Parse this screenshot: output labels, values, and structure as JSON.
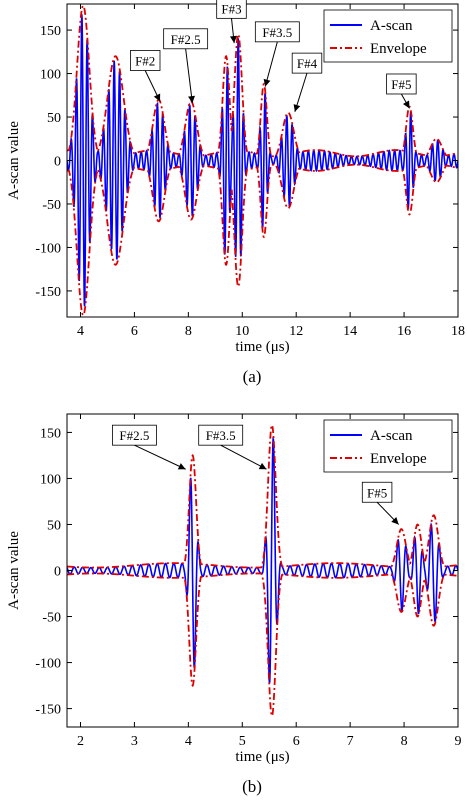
{
  "chart_data": [
    {
      "type": "line",
      "caption": "(a)",
      "xlabel": "time (μs)",
      "ylabel": "A-scan value",
      "xlim": [
        3.5,
        18
      ],
      "ylim": [
        -180,
        180
      ],
      "xticks": [
        4,
        6,
        8,
        10,
        12,
        14,
        16,
        18
      ],
      "yticks": [
        -150,
        -100,
        -50,
        0,
        50,
        100,
        150
      ],
      "legend_position": "top-right",
      "grid": false,
      "series": [
        {
          "name": "A-scan",
          "color": "#0000ff",
          "style": "solid"
        },
        {
          "name": "Envelope",
          "color": "#dd0000",
          "style": "dash-dot"
        }
      ],
      "carrier_frequency_mhz": 5,
      "echoes": [
        {
          "t": 4.1,
          "amp": 178,
          "width": 0.32
        },
        {
          "t": 5.3,
          "amp": 120,
          "width": 0.42
        },
        {
          "t": 6.9,
          "amp": 70,
          "width": 0.3
        },
        {
          "t": 8.1,
          "amp": 68,
          "width": 0.3
        },
        {
          "t": 9.4,
          "amp": 120,
          "width": 0.18
        },
        {
          "t": 9.85,
          "amp": 145,
          "width": 0.2
        },
        {
          "t": 10.8,
          "amp": 88,
          "width": 0.16
        },
        {
          "t": 11.7,
          "amp": 55,
          "width": 0.3
        },
        {
          "t": 16.2,
          "amp": 62,
          "width": 0.18
        },
        {
          "t": 17.2,
          "amp": 25,
          "width": 0.3
        }
      ],
      "noise_floor": 12,
      "annotations": [
        {
          "label": "F#2",
          "box_t": 6.4,
          "box_v": 115,
          "tip_t": 6.95,
          "tip_v": 68
        },
        {
          "label": "F#2.5",
          "box_t": 7.9,
          "box_v": 140,
          "tip_t": 8.15,
          "tip_v": 66
        },
        {
          "label": "F#3",
          "box_t": 9.6,
          "box_v": 175,
          "tip_t": 9.7,
          "tip_v": 135
        },
        {
          "label": "F#3.5",
          "box_t": 11.3,
          "box_v": 148,
          "tip_t": 10.85,
          "tip_v": 85
        },
        {
          "label": "F#4",
          "box_t": 12.4,
          "box_v": 112,
          "tip_t": 11.95,
          "tip_v": 56
        },
        {
          "label": "F#5",
          "box_t": 15.9,
          "box_v": 88,
          "tip_t": 16.2,
          "tip_v": 60
        }
      ]
    },
    {
      "type": "line",
      "caption": "(b)",
      "xlabel": "time (μs)",
      "ylabel": "A-scan value",
      "xlim": [
        1.75,
        9
      ],
      "ylim": [
        -170,
        170
      ],
      "xticks": [
        2,
        3,
        4,
        5,
        6,
        7,
        8,
        9
      ],
      "yticks": [
        -150,
        -100,
        -50,
        0,
        50,
        100,
        150
      ],
      "legend_position": "top-right",
      "grid": false,
      "series": [
        {
          "name": "A-scan",
          "color": "#0000ff",
          "style": "solid"
        },
        {
          "name": "Envelope",
          "color": "#dd0000",
          "style": "dash-dot"
        }
      ],
      "carrier_frequency_mhz": 6.5,
      "echoes": [
        {
          "t": 4.08,
          "amp": 125,
          "width": 0.09
        },
        {
          "t": 5.55,
          "amp": 158,
          "width": 0.1
        },
        {
          "t": 7.95,
          "amp": 45,
          "width": 0.12
        },
        {
          "t": 8.25,
          "amp": 50,
          "width": 0.1
        },
        {
          "t": 8.55,
          "amp": 60,
          "width": 0.12
        }
      ],
      "noise_floor": 8,
      "annotations": [
        {
          "label": "F#2.5",
          "box_t": 3.0,
          "box_v": 147,
          "tip_t": 3.95,
          "tip_v": 110
        },
        {
          "label": "F#3.5",
          "box_t": 4.6,
          "box_v": 147,
          "tip_t": 5.45,
          "tip_v": 110
        },
        {
          "label": "F#5",
          "box_t": 7.5,
          "box_v": 85,
          "tip_t": 7.9,
          "tip_v": 50
        }
      ]
    }
  ]
}
